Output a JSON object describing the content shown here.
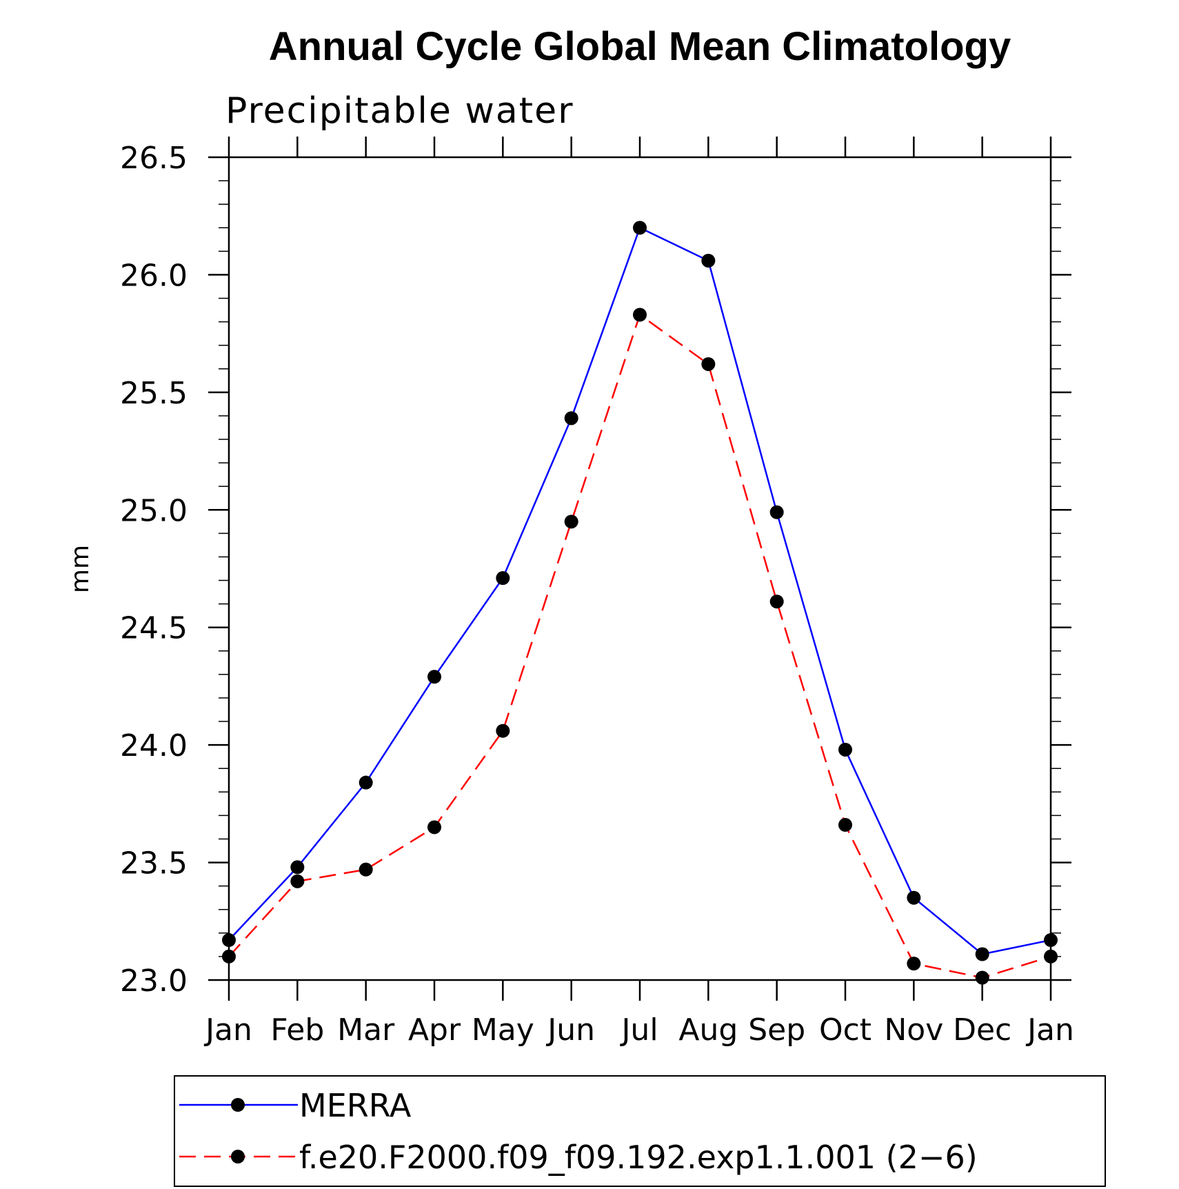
{
  "chart_data": {
    "type": "line",
    "title": "Annual Cycle Global Mean Climatology",
    "subtitle": "Precipitable water",
    "xlabel": "",
    "ylabel": "mm",
    "categories": [
      "Jan",
      "Feb",
      "Mar",
      "Apr",
      "May",
      "Jun",
      "Jul",
      "Aug",
      "Sep",
      "Oct",
      "Nov",
      "Dec",
      "Jan"
    ],
    "ylim": [
      23.0,
      26.5
    ],
    "yticks": [
      "23.0",
      "23.5",
      "24.0",
      "24.5",
      "25.0",
      "25.5",
      "26.0",
      "26.5"
    ],
    "grid": false,
    "legend_position": "bottom",
    "series": [
      {
        "name": "MERRA",
        "color": "#0000ff",
        "line_style": "solid",
        "marker": "filled-circle",
        "values": [
          23.17,
          23.48,
          23.84,
          24.29,
          24.71,
          25.39,
          26.2,
          26.06,
          24.99,
          23.98,
          23.35,
          23.11,
          23.17
        ]
      },
      {
        "name": "f.e20.F2000.f09_f09.192.exp1.1.001 (2−6)",
        "color": "#ff0000",
        "line_style": "dashed",
        "marker": "filled-circle",
        "values": [
          23.1,
          23.42,
          23.47,
          23.65,
          24.06,
          24.95,
          25.83,
          25.62,
          24.61,
          23.66,
          23.07,
          23.01,
          23.1
        ]
      }
    ]
  }
}
